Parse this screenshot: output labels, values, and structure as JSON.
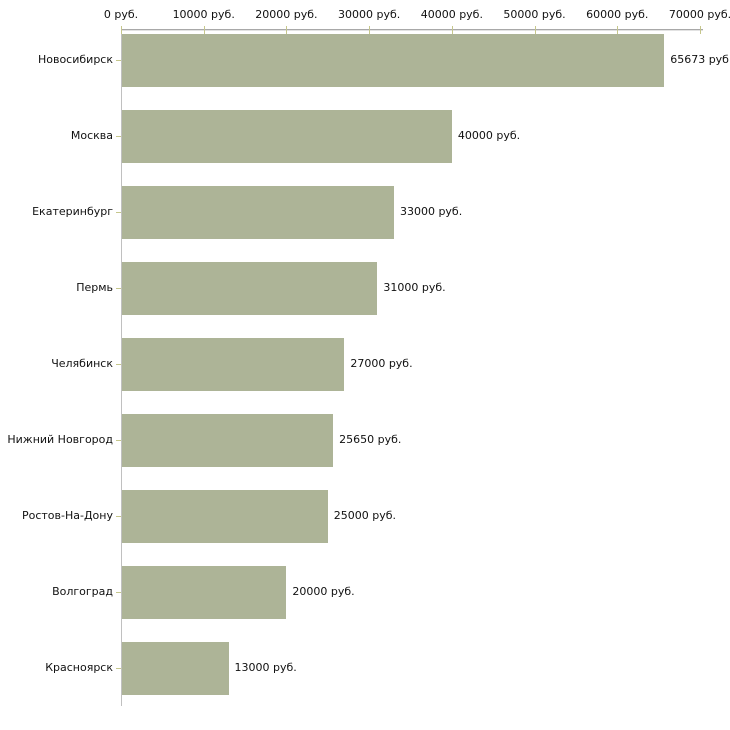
{
  "chart_data": {
    "type": "bar",
    "orientation": "horizontal",
    "title": "",
    "xlabel": "",
    "ylabel": "",
    "grid": false,
    "legend": null,
    "xlim": [
      0,
      70000
    ],
    "categories": [
      "Новосибирск",
      "Москва",
      "Екатеринбург",
      "Пермь",
      "Челябинск",
      "Нижний Новгород",
      "Ростов-На-Дону",
      "Волгоград",
      "Красноярск"
    ],
    "values": [
      65673,
      40000,
      33000,
      31000,
      27000,
      25650,
      25000,
      20000,
      13000
    ],
    "value_labels": [
      "65673 руб.",
      "40000 руб.",
      "33000 руб.",
      "31000 руб.",
      "27000 руб.",
      "25650 руб.",
      "25000 руб.",
      "20000 руб.",
      "13000 руб."
    ],
    "x_ticks": [
      {
        "value": 0,
        "label": "0 руб."
      },
      {
        "value": 10000,
        "label": "10000 руб."
      },
      {
        "value": 20000,
        "label": "20000 руб."
      },
      {
        "value": 30000,
        "label": "30000 руб."
      },
      {
        "value": 40000,
        "label": "40000 руб."
      },
      {
        "value": 50000,
        "label": "50000 руб."
      },
      {
        "value": 60000,
        "label": "60000 руб."
      },
      {
        "value": 70000,
        "label": "70000 руб."
      }
    ],
    "colors": {
      "bar_fill": "#adb497",
      "axis_line": "#a8a8a8",
      "vertical_axis_line": "#c0c0c0",
      "tick_mark": "#c6c78c",
      "text": "#111111",
      "background": "#ffffff"
    }
  }
}
